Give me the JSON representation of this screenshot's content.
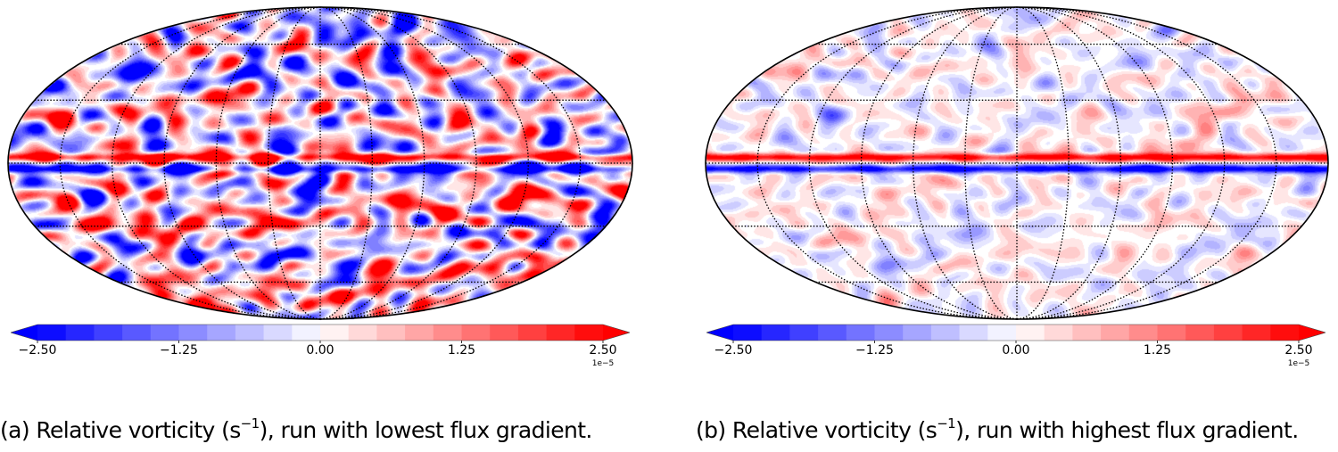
{
  "chart_data": [
    {
      "type": "heatmap",
      "projection": "mollweide",
      "field": "relative vorticity",
      "units": "s^-1",
      "panel_label": "(a)",
      "caption_prefix": "(a) Relative vorticity (s",
      "caption_exp": "−1",
      "caption_suffix": "), run with lowest flux gradient.",
      "colormap": "bwr",
      "vmin": -2.5e-05,
      "vmax": 2.5e-05,
      "colorbar": {
        "orientation": "horizontal",
        "levels": 20,
        "extend": "both",
        "ticks": [
          -2.5,
          -1.25,
          0.0,
          1.25,
          2.5
        ],
        "tick_labels": [
          "−2.50",
          "−1.25",
          "0.00",
          "1.25",
          "2.50"
        ],
        "offset_label": "1e−5"
      },
      "graticule": {
        "meridians_deg": [
          -150,
          -120,
          -90,
          -60,
          -30,
          0,
          30,
          60,
          90,
          120,
          150
        ],
        "parallels_deg": [
          -60,
          -30,
          0,
          30,
          60
        ],
        "style": "dotted"
      },
      "features": {
        "equatorial_jet": "strong positive band just north of equator, negative band just south",
        "turbulence_amplitude": 0.75,
        "seed": 11
      }
    },
    {
      "type": "heatmap",
      "projection": "mollweide",
      "field": "relative vorticity",
      "units": "s^-1",
      "panel_label": "(b)",
      "caption_prefix": "(b) Relative vorticity (s",
      "caption_exp": "−1",
      "caption_suffix": "), run with highest flux gradient.",
      "colormap": "bwr",
      "vmin": -2.5e-05,
      "vmax": 2.5e-05,
      "colorbar": {
        "orientation": "horizontal",
        "levels": 20,
        "extend": "both",
        "ticks": [
          -2.5,
          -1.25,
          0.0,
          1.25,
          2.5
        ],
        "tick_labels": [
          "−2.50",
          "−1.25",
          "0.00",
          "1.25",
          "2.50"
        ],
        "offset_label": "1e−5"
      },
      "graticule": {
        "meridians_deg": [
          -150,
          -120,
          -90,
          -60,
          -30,
          0,
          30,
          60,
          90,
          120,
          150
        ],
        "parallels_deg": [
          -60,
          -30,
          0,
          30,
          60
        ],
        "style": "dotted"
      },
      "features": {
        "equatorial_jet": "strong positive band just north of equator, negative band just south",
        "turbulence_amplitude": 0.22,
        "seed": 29
      }
    }
  ],
  "colors": {
    "negative": "#0000ff",
    "neutral": "#ffffff",
    "positive": "#ff0000",
    "outline": "#000000"
  }
}
